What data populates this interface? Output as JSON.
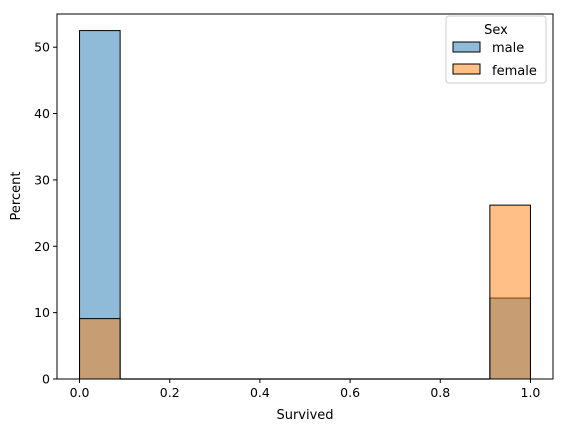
{
  "chart_data": {
    "type": "bar",
    "xlabel": "Survived",
    "ylabel": "Percent",
    "xlim": [
      -0.05,
      1.05
    ],
    "ylim": [
      0,
      55
    ],
    "xticks": [
      "0.0",
      "0.2",
      "0.4",
      "0.6",
      "0.8",
      "1.0"
    ],
    "xtick_values": [
      0.0,
      0.2,
      0.4,
      0.6,
      0.8,
      1.0
    ],
    "yticks": [
      "0",
      "10",
      "20",
      "30",
      "40",
      "50"
    ],
    "ytick_values": [
      0,
      10,
      20,
      30,
      40,
      50
    ],
    "bins": [
      {
        "x0": 0.0,
        "x1": 0.09
      },
      {
        "x0": 0.91,
        "x1": 1.0
      }
    ],
    "legend_title": "Sex",
    "legend_position": "top-right",
    "grid": false,
    "series": [
      {
        "name": "male",
        "color": "#1f77b4",
        "values": [
          52.5,
          12.2
        ]
      },
      {
        "name": "female",
        "color": "#ff7f0e",
        "values": [
          9.1,
          26.2
        ]
      }
    ]
  }
}
